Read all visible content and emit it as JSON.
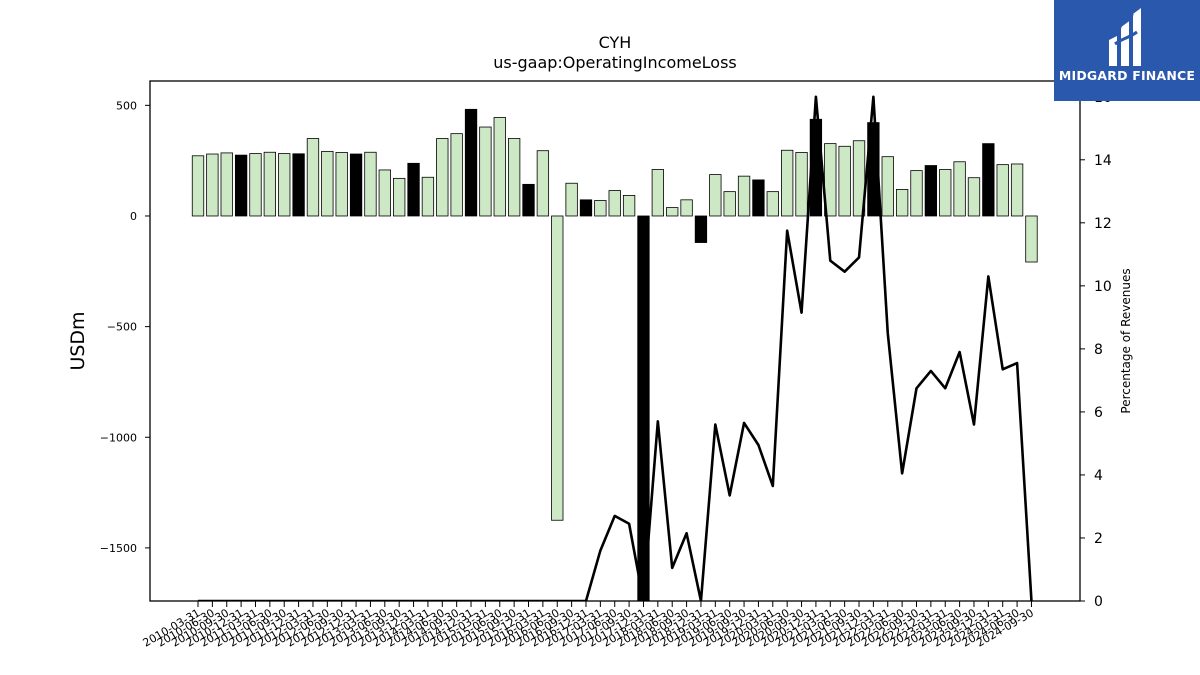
{
  "header": {
    "title": "CYH",
    "subtitle": "us-gaap:OperatingIncomeLoss"
  },
  "logo": {
    "text": "MIDGARD FINANCE",
    "icon": "midgard-logo-icon",
    "background": "#2a58ad"
  },
  "colors": {
    "bar_light": "#cce8c4",
    "bar_dark": "#000000",
    "line": "#000000"
  },
  "chart_data": {
    "type": "bar",
    "title": "CYH",
    "subtitle": "us-gaap:OperatingIncomeLoss",
    "ylabel": "USDm",
    "y2label": "Percentage of Revenues",
    "ylim": [
      -1740,
      610
    ],
    "y2lim": [
      0,
      16.5
    ],
    "yticks": [
      500,
      0,
      -500,
      -1000,
      -1500
    ],
    "ytick_labels": [
      "500",
      "0",
      "−500",
      "−1000",
      "−1500"
    ],
    "y2ticks": [
      0,
      2,
      4,
      6,
      8,
      10,
      12,
      14,
      16
    ],
    "y2tick_labels": [
      "0",
      "2",
      "4",
      "6",
      "8",
      "10",
      "12",
      "14",
      "16"
    ],
    "x_tick_labels": [
      "2010-03-31",
      "2010-06-30",
      "2010-09-30",
      "2010-12-31",
      "2011-03-31",
      "2011-06-30",
      "2011-09-30",
      "2011-12-31",
      "2012-03-31",
      "2012-06-30",
      "2012-09-30",
      "2012-12-31",
      "2013-03-31",
      "2013-06-30",
      "2013-09-30",
      "2013-12-31",
      "2014-03-31",
      "2014-06-30",
      "2014-09-30",
      "2014-12-31",
      "2015-03-31",
      "2015-06-30",
      "2015-09-30",
      "2015-12-31",
      "2016-03-31",
      "2016-06-30",
      "2016-09-30",
      "2016-12-31",
      "2017-03-31",
      "2017-06-30",
      "2017-09-30",
      "2017-12-31",
      "2018-03-31",
      "2018-06-30",
      "2018-09-30",
      "2018-12-31",
      "2019-03-31",
      "2019-06-30",
      "2019-09-30",
      "2019-12-31",
      "2020-03-31",
      "2020-06-30",
      "2020-09-30",
      "2020-12-31",
      "2021-03-31",
      "2021-06-30",
      "2021-09-30",
      "2021-12-31",
      "2022-03-31",
      "2022-06-30",
      "2022-09-30",
      "2022-12-31",
      "2023-03-31",
      "2023-06-30",
      "2023-09-30",
      "2023-12-31",
      "2024-03-31",
      "2024-06-30",
      "2024-09-30"
    ],
    "series": [
      {
        "values": [
          272,
          280,
          285,
          275,
          282,
          288,
          282,
          281,
          350,
          292,
          287,
          280,
          288,
          208,
          170,
          238,
          175,
          350,
          372,
          482,
          402,
          445,
          350,
          143,
          295,
          -1375,
          148,
          73,
          70,
          115,
          93,
          -1760,
          210,
          38,
          73,
          -120,
          187,
          110,
          180,
          163,
          110,
          297,
          287,
          437,
          327,
          315,
          340,
          422,
          268,
          120,
          205,
          228,
          210,
          245,
          173,
          327,
          232,
          235,
          -208
        ],
        "dark_flags": [
          0,
          0,
          0,
          1,
          0,
          0,
          0,
          1,
          0,
          0,
          0,
          1,
          0,
          0,
          0,
          1,
          0,
          0,
          0,
          1,
          0,
          0,
          0,
          1,
          0,
          0,
          0,
          1,
          0,
          0,
          0,
          1,
          0,
          0,
          0,
          1,
          0,
          0,
          0,
          1,
          0,
          0,
          0,
          1,
          0,
          0,
          0,
          1,
          0,
          0,
          0,
          1,
          0,
          0,
          0,
          1,
          0,
          0,
          0
        ]
      },
      {
        "axis": "right",
        "values": [
          0,
          0,
          0,
          0,
          0,
          0,
          0,
          0,
          0,
          0,
          0,
          0,
          0,
          0,
          0,
          0,
          0,
          0,
          0,
          0,
          0,
          0,
          0,
          0,
          0,
          0,
          0,
          0,
          1.6,
          2.7,
          2.45,
          0,
          5.7,
          1.05,
          2.15,
          0,
          5.6,
          3.35,
          5.65,
          4.95,
          3.65,
          11.75,
          9.15,
          16.0,
          10.8,
          10.45,
          10.9,
          16.0,
          8.5,
          4.05,
          6.75,
          7.3,
          6.75,
          7.9,
          5.6,
          10.3,
          7.35,
          7.55,
          0
        ]
      }
    ],
    "grid": false,
    "legend": "none"
  }
}
